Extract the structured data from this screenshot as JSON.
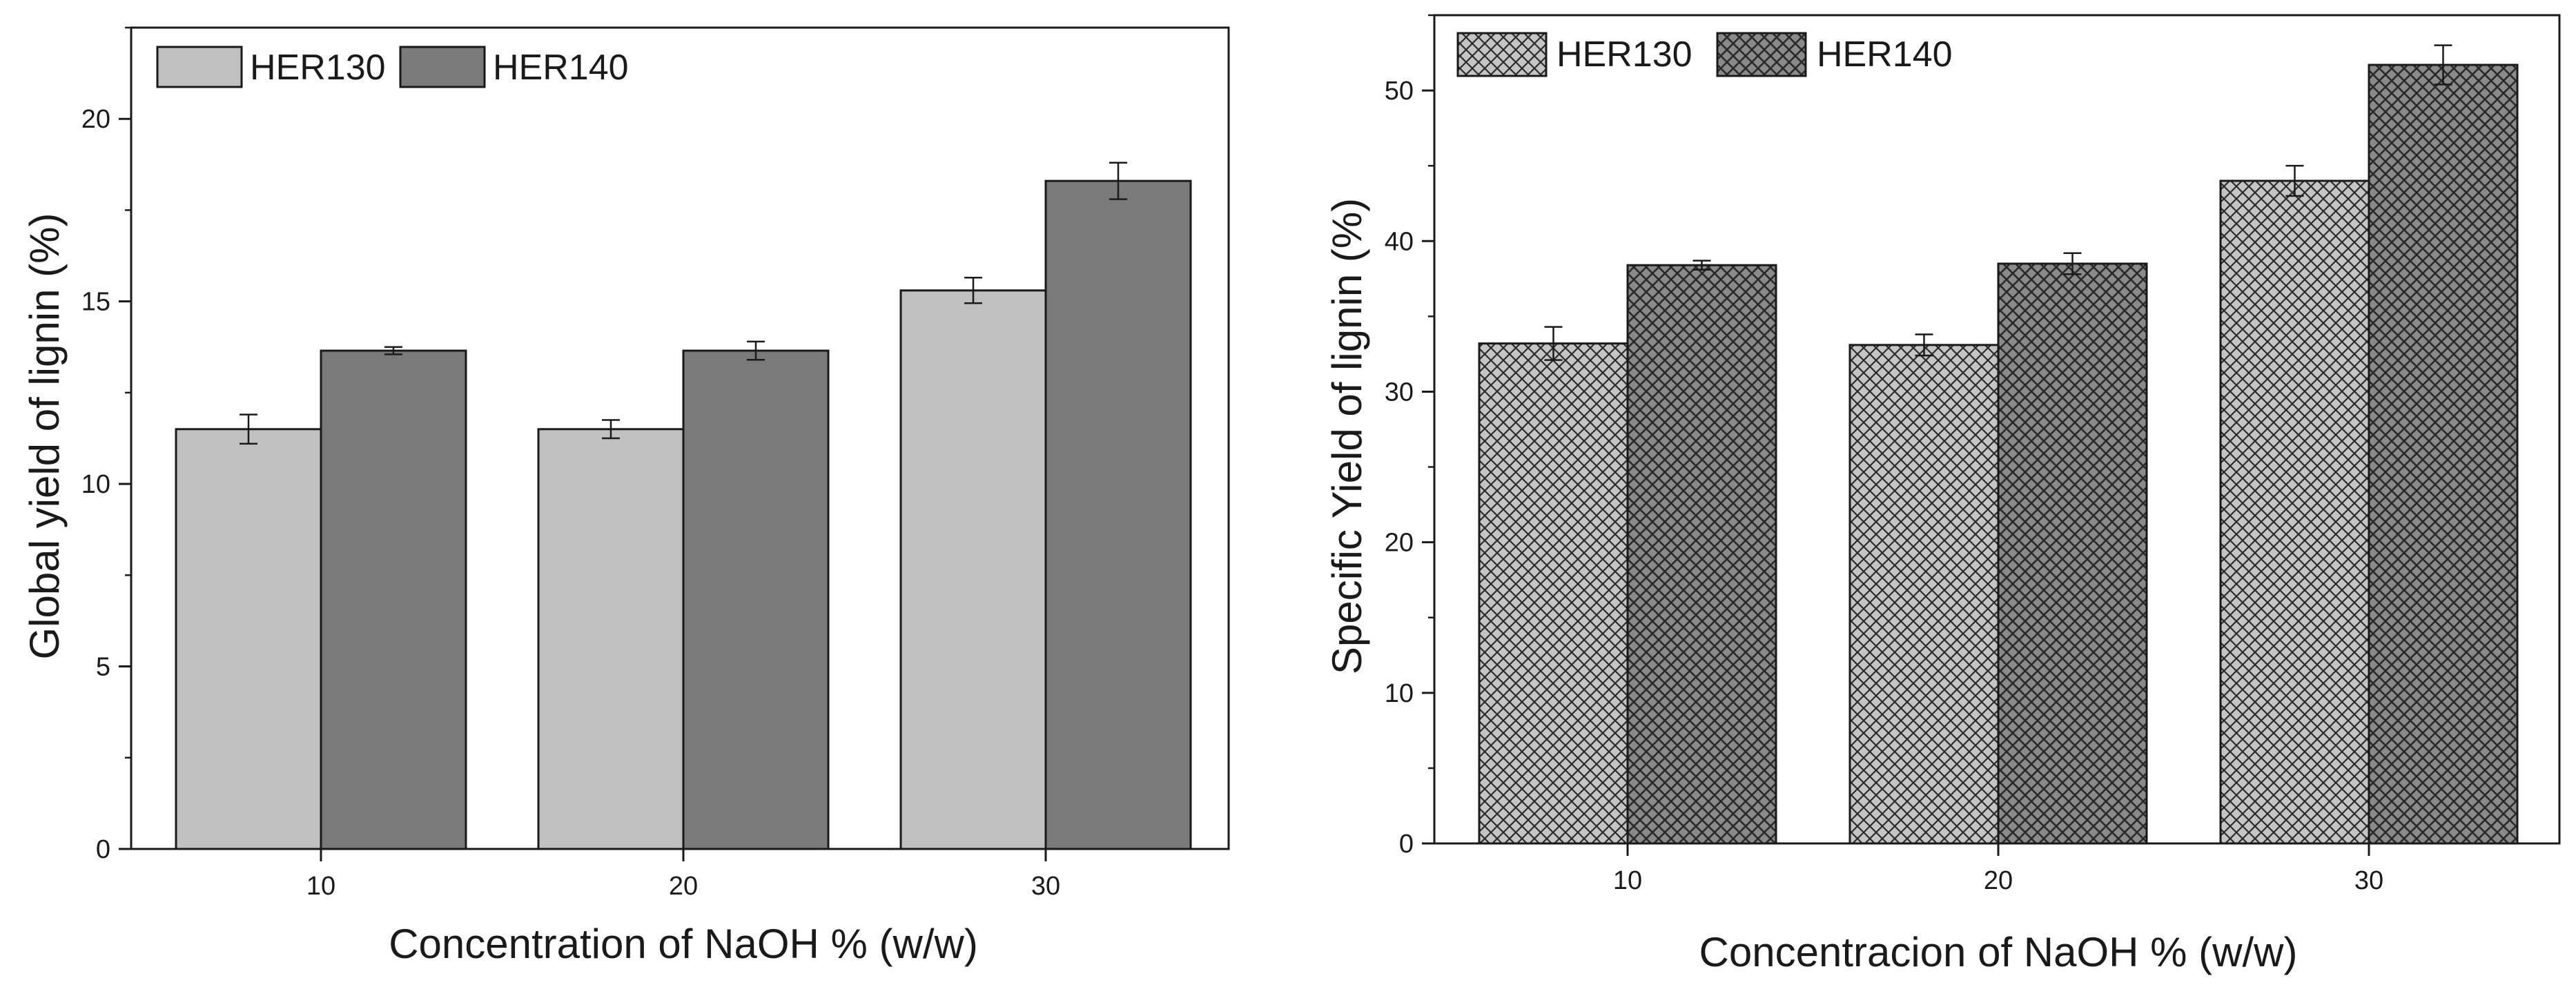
{
  "colors": {
    "her130_solid": "#c0c0c0",
    "her140_solid": "#7a7a7a",
    "her130_hatch_bg": "#c4c4c4",
    "her140_hatch_bg": "#8a8a8a",
    "hatch_line": "#2a2a2a",
    "bar_outline": "#1a1a1a",
    "axis": "#1a1a1a"
  },
  "chart_data": [
    {
      "type": "bar",
      "style": "solid",
      "title": "",
      "xlabel": "Concentration of NaOH % (w/w)",
      "ylabel": "Global yield of lignin (%)",
      "categories": [
        "10",
        "20",
        "30"
      ],
      "ylim": [
        0,
        22.5
      ],
      "yticks": [
        0,
        5,
        10,
        15,
        20
      ],
      "ytick_labels": [
        "0",
        "5",
        "10",
        "15",
        "20"
      ],
      "grid": false,
      "legend_position": "top-left",
      "series": [
        {
          "name": "HER130",
          "values": [
            11.5,
            11.5,
            15.3
          ],
          "errors": [
            0.4,
            0.25,
            0.35
          ]
        },
        {
          "name": "HER140",
          "values": [
            13.65,
            13.65,
            18.3
          ],
          "errors": [
            0.1,
            0.25,
            0.5
          ]
        }
      ]
    },
    {
      "type": "bar",
      "style": "hatched",
      "title": "",
      "xlabel": "Concentracion of NaOH % (w/w)",
      "ylabel": "Specific Yield of lignin (%)",
      "categories": [
        "10",
        "20",
        "30"
      ],
      "ylim": [
        0,
        55
      ],
      "yticks": [
        0,
        10,
        20,
        30,
        40,
        50
      ],
      "ytick_labels": [
        "0",
        "10",
        "20",
        "30",
        "40",
        "50"
      ],
      "grid": false,
      "legend_position": "top-left",
      "series": [
        {
          "name": "HER130",
          "values": [
            33.2,
            33.1,
            44.0
          ],
          "errors": [
            1.1,
            0.7,
            1.0
          ]
        },
        {
          "name": "HER140",
          "values": [
            38.4,
            38.5,
            51.7
          ],
          "errors": [
            0.3,
            0.7,
            1.3
          ]
        }
      ]
    }
  ]
}
